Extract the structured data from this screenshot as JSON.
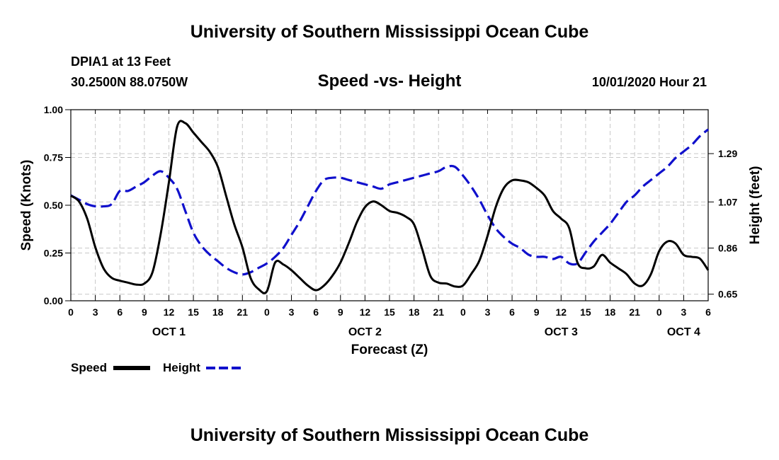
{
  "header": {
    "title": "University of Southern Mississippi Ocean Cube",
    "station": "DPIA1 at 13 Feet",
    "coords": "30.2500N 88.0750W",
    "chart_heading": "Speed -vs- Height",
    "forecast_time": "10/01/2020 Hour 21"
  },
  "footer": {
    "title": "University of Southern Mississippi Ocean Cube"
  },
  "colors": {
    "speed": "#000000",
    "height": "#1010cc",
    "grid": "#c8c8c8"
  },
  "chart_data": {
    "type": "line",
    "title": "Speed -vs- Height",
    "xlabel": "Forecast (Z)",
    "ylabel": "Speed (Knots)",
    "y2label": "Height (feet)",
    "xlim": [
      0,
      78
    ],
    "ylim": [
      0,
      1.0
    ],
    "y2lim": [
      0.62,
      1.49
    ],
    "x_tick_values": [
      0,
      3,
      6,
      9,
      12,
      15,
      18,
      21,
      24,
      27,
      30,
      33,
      36,
      39,
      42,
      45,
      48,
      51,
      54,
      57,
      60,
      63,
      66,
      69,
      72,
      75,
      78
    ],
    "x_tick_labels": [
      "0",
      "3",
      "6",
      "9",
      "12",
      "15",
      "18",
      "21",
      "0",
      "3",
      "6",
      "9",
      "12",
      "15",
      "18",
      "21",
      "0",
      "3",
      "6",
      "9",
      "12",
      "15",
      "18",
      "21",
      "0",
      "3",
      "6"
    ],
    "day_labels": [
      {
        "x": 12,
        "label": "OCT 1"
      },
      {
        "x": 36,
        "label": "OCT 2"
      },
      {
        "x": 60,
        "label": "OCT 3"
      },
      {
        "x": 75,
        "label": "OCT 4"
      }
    ],
    "y_ticks": [
      0.0,
      0.25,
      0.5,
      0.75,
      1.0
    ],
    "y_tick_labels": [
      "0.00",
      "0.25",
      "0.50",
      "0.75",
      "1.00"
    ],
    "y2_ticks": [
      0.65,
      0.86,
      1.07,
      1.29
    ],
    "y2_tick_labels": [
      "0.65",
      "0.86",
      "1.07",
      "1.29"
    ],
    "legend": [
      {
        "name": "Speed",
        "style": "solid"
      },
      {
        "name": "Height",
        "style": "dashed"
      }
    ],
    "series": [
      {
        "name": "Speed",
        "axis": "left",
        "style": "solid",
        "x": [
          0,
          1,
          2,
          3,
          4,
          5,
          6,
          7,
          8,
          9,
          10,
          11,
          12,
          13,
          14,
          15,
          16,
          17,
          18,
          19,
          20,
          21,
          22,
          23,
          24,
          25,
          26,
          27,
          28,
          29,
          30,
          31,
          32,
          33,
          34,
          35,
          36,
          37,
          38,
          39,
          40,
          41,
          42,
          43,
          44,
          45,
          46,
          47,
          48,
          49,
          50,
          51,
          52,
          53,
          54,
          55,
          56,
          57,
          58,
          59,
          60,
          61,
          62,
          63,
          64,
          65,
          66,
          67,
          68,
          69,
          70,
          71,
          72,
          73,
          74,
          75,
          76,
          77,
          78
        ],
        "values": [
          0.55,
          0.52,
          0.43,
          0.28,
          0.17,
          0.12,
          0.105,
          0.095,
          0.085,
          0.09,
          0.15,
          0.35,
          0.62,
          0.91,
          0.93,
          0.88,
          0.83,
          0.78,
          0.7,
          0.55,
          0.4,
          0.28,
          0.12,
          0.06,
          0.05,
          0.2,
          0.19,
          0.16,
          0.12,
          0.08,
          0.055,
          0.08,
          0.13,
          0.2,
          0.3,
          0.41,
          0.49,
          0.52,
          0.5,
          0.47,
          0.46,
          0.44,
          0.4,
          0.27,
          0.13,
          0.095,
          0.09,
          0.075,
          0.08,
          0.14,
          0.21,
          0.34,
          0.49,
          0.59,
          0.63,
          0.63,
          0.62,
          0.59,
          0.55,
          0.47,
          0.43,
          0.38,
          0.2,
          0.17,
          0.18,
          0.24,
          0.2,
          0.17,
          0.14,
          0.09,
          0.08,
          0.14,
          0.26,
          0.31,
          0.3,
          0.24,
          0.23,
          0.22,
          0.16
        ]
      },
      {
        "name": "Height",
        "axis": "right",
        "style": "dashed",
        "x": [
          0,
          1,
          2,
          3,
          4,
          5,
          6,
          7,
          8,
          9,
          10,
          11,
          12,
          13,
          14,
          15,
          16,
          17,
          18,
          19,
          20,
          21,
          22,
          23,
          24,
          25,
          26,
          27,
          28,
          29,
          30,
          31,
          32,
          33,
          34,
          35,
          36,
          37,
          38,
          39,
          40,
          41,
          42,
          43,
          44,
          45,
          46,
          47,
          48,
          49,
          50,
          51,
          52,
          53,
          54,
          55,
          56,
          57,
          58,
          59,
          60,
          61,
          62,
          63,
          64,
          65,
          66,
          67,
          68,
          69,
          70,
          71,
          72,
          73,
          74,
          75,
          76,
          77,
          78
        ],
        "values": [
          1.1,
          1.08,
          1.06,
          1.05,
          1.05,
          1.06,
          1.12,
          1.12,
          1.14,
          1.16,
          1.19,
          1.21,
          1.18,
          1.13,
          1.03,
          0.93,
          0.87,
          0.83,
          0.8,
          0.77,
          0.75,
          0.74,
          0.75,
          0.77,
          0.79,
          0.82,
          0.86,
          0.92,
          0.98,
          1.05,
          1.12,
          1.17,
          1.18,
          1.18,
          1.17,
          1.16,
          1.15,
          1.14,
          1.13,
          1.15,
          1.16,
          1.17,
          1.18,
          1.19,
          1.2,
          1.21,
          1.23,
          1.23,
          1.19,
          1.14,
          1.08,
          1.01,
          0.95,
          0.91,
          0.88,
          0.86,
          0.83,
          0.82,
          0.82,
          0.81,
          0.82,
          0.79,
          0.79,
          0.84,
          0.89,
          0.93,
          0.97,
          1.02,
          1.07,
          1.1,
          1.14,
          1.17,
          1.2,
          1.23,
          1.27,
          1.3,
          1.33,
          1.37,
          1.4
        ]
      }
    ]
  }
}
